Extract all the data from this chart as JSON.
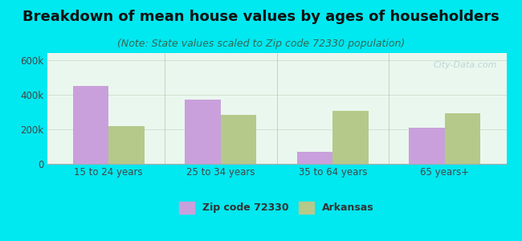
{
  "title": "Breakdown of mean house values by ages of householders",
  "subtitle": "(Note: State values scaled to Zip code 72330 population)",
  "categories": [
    "15 to 24 years",
    "25 to 34 years",
    "35 to 64 years",
    "65 years+"
  ],
  "zip_values": [
    450000,
    370000,
    70000,
    210000
  ],
  "state_values": [
    220000,
    285000,
    305000,
    290000
  ],
  "zip_color": "#c9a0dc",
  "state_color": "#b5c98a",
  "background_outer": "#00e8f0",
  "background_inner_top": "#f0fff8",
  "background_inner_bottom": "#d4f0d4",
  "ylim": [
    0,
    640000
  ],
  "yticks": [
    0,
    200000,
    400000,
    600000
  ],
  "ytick_labels": [
    "0",
    "200k",
    "400k",
    "600k"
  ],
  "legend_zip_label": "Zip code 72330",
  "legend_state_label": "Arkansas",
  "bar_width": 0.32,
  "title_fontsize": 13,
  "subtitle_fontsize": 9,
  "tick_fontsize": 8.5,
  "legend_fontsize": 9
}
